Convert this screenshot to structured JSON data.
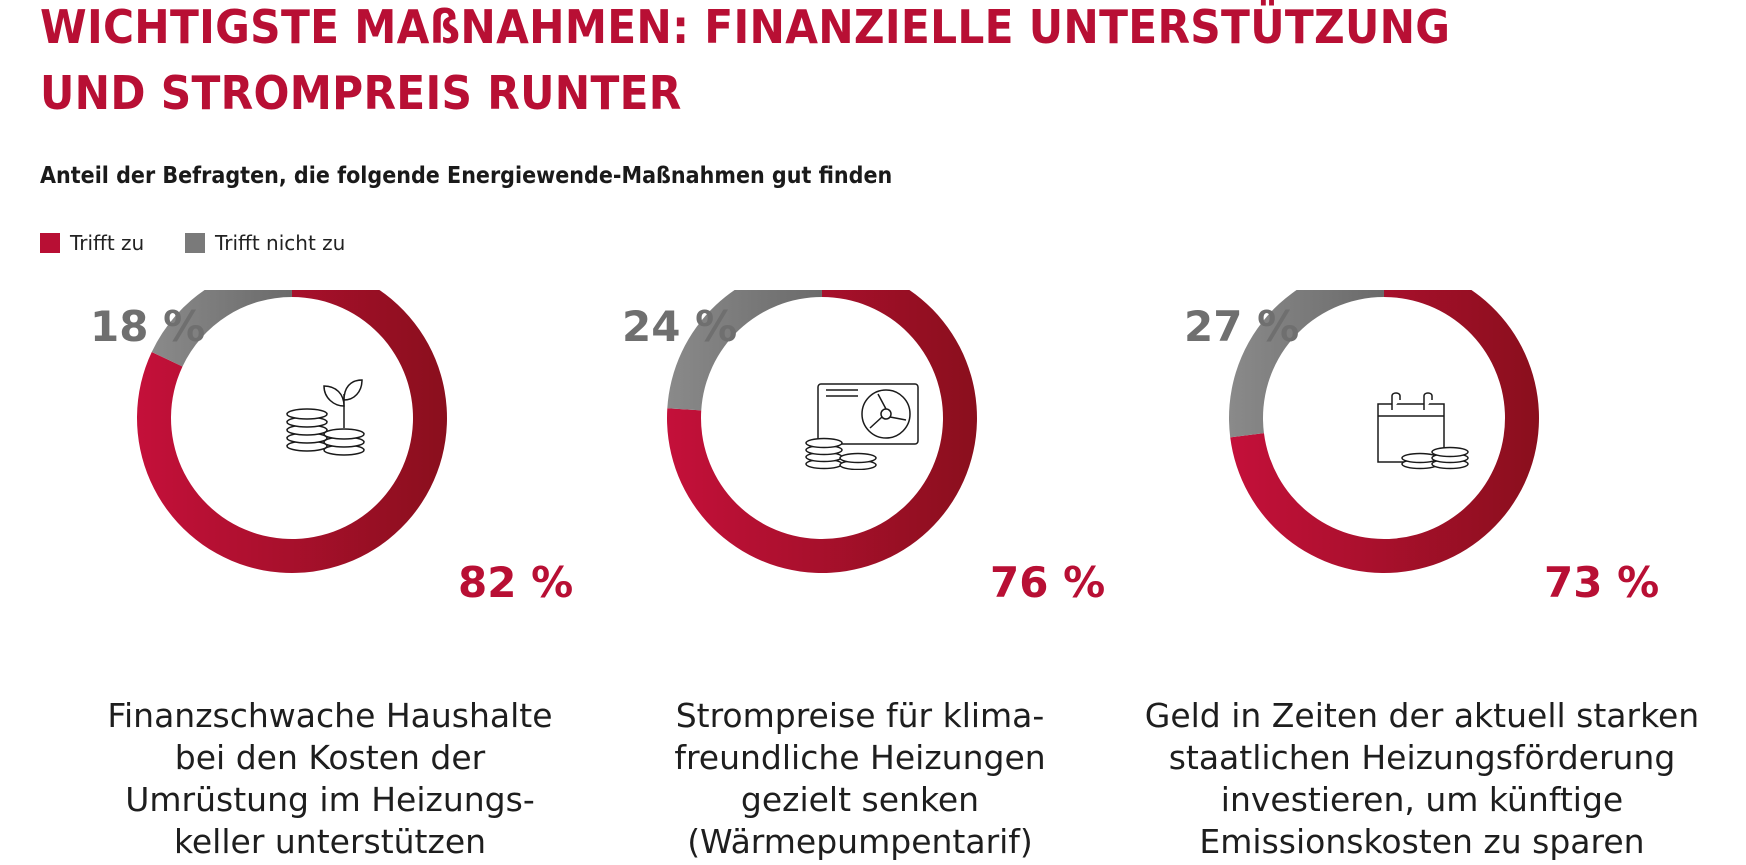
{
  "title": {
    "line1": "WICHTIGSTE MAßNAHMEN: FINANZIELLE UNTERSTÜTZUNG",
    "line2": "UND STROMPREIS RUNTER"
  },
  "subtitle": "Anteil der Befragten, die folgende Energiewende-Maßnahmen gut finden",
  "legend": [
    {
      "label": "Trifft zu",
      "color": "#b80f34"
    },
    {
      "label": "Trifft nicht zu",
      "color": "#7a7a7a"
    }
  ],
  "colors": {
    "yes_start": "#c4103a",
    "yes_end": "#8a0f1d",
    "no_start": "#8a8a8a",
    "no_end": "#6a6a6a"
  },
  "chart_data": [
    {
      "type": "pie",
      "categories": [
        "Trifft zu",
        "Trifft nicht zu"
      ],
      "values": [
        82,
        18
      ],
      "yes_label": "82 %",
      "no_label": "18 %",
      "icon": "coins-plant-icon",
      "caption": [
        "Finanzschwache Haushalte",
        "bei den Kosten der",
        "Umrüstung im Heizungs-",
        "keller unterstützen"
      ]
    },
    {
      "type": "pie",
      "categories": [
        "Trifft zu",
        "Trifft nicht zu"
      ],
      "values": [
        76,
        24
      ],
      "yes_label": "76 %",
      "no_label": "24 %",
      "icon": "heat-pump-coins-icon",
      "caption": [
        "Strompreise für klima-",
        "freundliche Heizungen",
        "gezielt senken",
        "(Wärmepumpentarif)"
      ]
    },
    {
      "type": "pie",
      "categories": [
        "Trifft zu",
        "Trifft nicht zu"
      ],
      "values": [
        73,
        27
      ],
      "yes_label": "73 %",
      "no_label": "27 %",
      "icon": "calendar-coins-icon",
      "caption": [
        "Geld in Zeiten der aktuell starken",
        "staatlichen Heizungsförderung",
        "investieren, um künftige",
        "Emissionskosten zu sparen"
      ]
    }
  ]
}
